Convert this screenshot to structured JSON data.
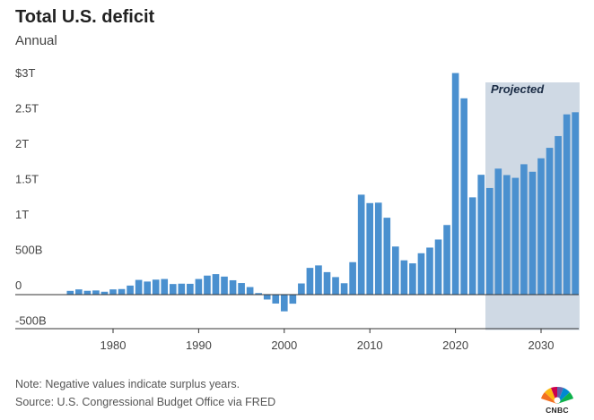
{
  "title": "Total U.S. deficit",
  "subtitle": "Annual",
  "note": "Note: Negative values indicate surplus years.",
  "source": "Source: U.S. Congressional Budget Office via FRED",
  "logo": {
    "text": "CNBC",
    "icon": "cnbc-peacock-logo"
  },
  "colors": {
    "bar": "#4a90cf",
    "projection_band": "#cfd9e4",
    "axis": "#333333",
    "grid": "#e5e5e5"
  },
  "chart_data": {
    "type": "bar",
    "annotation": "Projected",
    "projected_from": 2024,
    "projected_to": 2034,
    "ylim": [
      -500,
      3000
    ],
    "ytick_values": [
      -500,
      0,
      500,
      1000,
      1500,
      2000,
      2500,
      3000
    ],
    "ytick_labels": [
      "-500B",
      "0",
      "500B",
      "1T",
      "1.5T",
      "2T",
      "2.5T",
      "$3T"
    ],
    "xtick_values": [
      1980,
      1990,
      2000,
      2010,
      2020,
      2030
    ],
    "xtick_labels": [
      "1980",
      "1990",
      "2000",
      "2010",
      "2020",
      "2030"
    ],
    "xlabel": "",
    "ylabel": "",
    "x": [
      1974,
      1975,
      1976,
      1977,
      1978,
      1979,
      1980,
      1981,
      1982,
      1983,
      1984,
      1985,
      1986,
      1987,
      1988,
      1989,
      1990,
      1991,
      1992,
      1993,
      1994,
      1995,
      1996,
      1997,
      1998,
      1999,
      2000,
      2001,
      2002,
      2003,
      2004,
      2005,
      2006,
      2007,
      2008,
      2009,
      2010,
      2011,
      2012,
      2013,
      2014,
      2015,
      2016,
      2017,
      2018,
      2019,
      2020,
      2021,
      2022,
      2023,
      2024,
      2025,
      2026,
      2027,
      2028,
      2029,
      2030,
      2031,
      2032,
      2033,
      2034
    ],
    "values": [
      6,
      53,
      74,
      54,
      59,
      41,
      74,
      79,
      128,
      208,
      185,
      212,
      221,
      150,
      155,
      153,
      221,
      269,
      290,
      255,
      203,
      164,
      107,
      22,
      -69,
      -126,
      -236,
      -128,
      158,
      378,
      413,
      318,
      248,
      161,
      459,
      1413,
      1294,
      1300,
      1087,
      680,
      485,
      442,
      585,
      665,
      779,
      984,
      3132,
      2775,
      1375,
      1694,
      1507,
      1781,
      1690,
      1651,
      1843,
      1737,
      1927,
      2075,
      2241,
      2548,
      2578
    ]
  }
}
